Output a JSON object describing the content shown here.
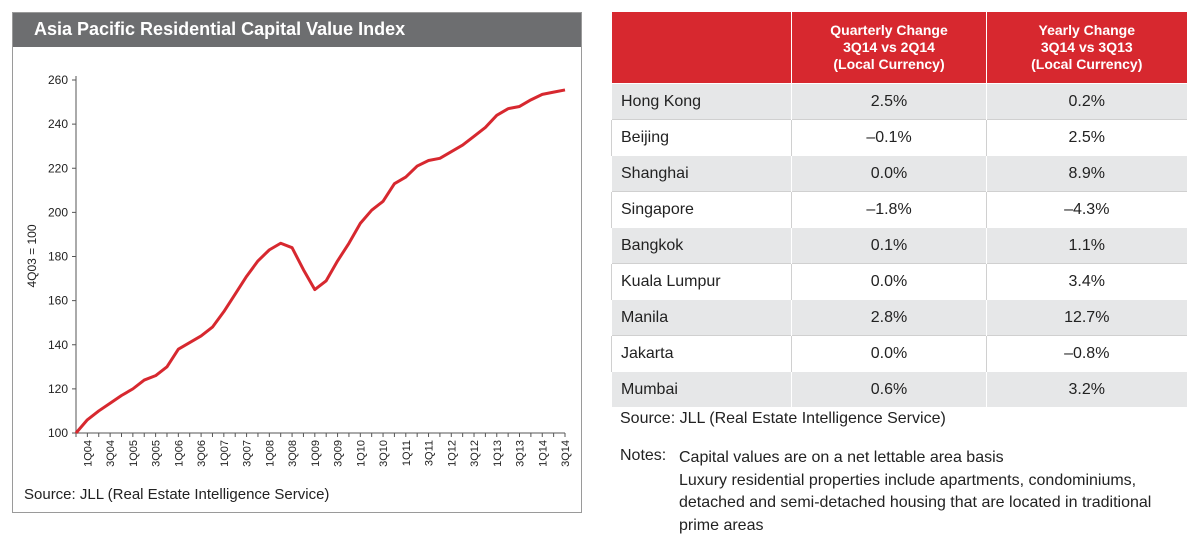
{
  "chart_data": {
    "type": "line",
    "title": "Asia Pacific Residential Capital Value Index",
    "ylabel": "4Q03 = 100",
    "source": "Source: JLL (Real Estate Intelligence Service)",
    "categories": [
      null,
      "1Q04",
      null,
      "3Q04",
      null,
      "1Q05",
      null,
      "3Q05",
      null,
      "1Q06",
      null,
      "3Q06",
      null,
      "1Q07",
      null,
      "3Q07",
      null,
      "1Q08",
      null,
      "3Q08",
      null,
      "1Q09",
      null,
      "3Q09",
      null,
      "1Q10",
      null,
      "3Q10",
      null,
      "1Q11",
      null,
      "3Q11",
      null,
      "1Q12",
      null,
      "3Q12",
      null,
      "1Q13",
      null,
      "3Q13",
      null,
      "1Q14",
      null,
      "3Q14"
    ],
    "values": [
      100,
      106,
      110,
      113.5,
      117,
      120,
      124,
      126,
      130,
      138,
      141,
      144,
      148,
      155,
      163,
      171,
      178,
      183,
      186,
      184,
      174,
      165,
      169,
      178,
      186,
      195,
      201,
      205,
      213,
      216,
      221,
      223.5,
      224.5,
      227.5,
      230.5,
      234.5,
      238.5,
      244,
      247,
      248,
      251,
      253.5,
      254.5,
      255.5
    ],
    "color": "#d7282f",
    "ylim": [
      100,
      260
    ],
    "yticks": [
      100,
      120,
      140,
      160,
      180,
      200,
      220,
      240,
      260
    ]
  },
  "table": {
    "headers": [
      [
        "Quarterly Change",
        "3Q14 vs 2Q14",
        "(Local Currency)"
      ],
      [
        "Yearly Change",
        "3Q14 vs 3Q13",
        "(Local Currency)"
      ]
    ],
    "rows": [
      [
        "Hong Kong",
        "2.5%",
        "0.2%"
      ],
      [
        "Beijing",
        "–0.1%",
        "2.5%"
      ],
      [
        "Shanghai",
        "0.0%",
        "8.9%"
      ],
      [
        "Singapore",
        "–1.8%",
        "–4.3%"
      ],
      [
        "Bangkok",
        "0.1%",
        "1.1%"
      ],
      [
        "Kuala Lumpur",
        "0.0%",
        "3.4%"
      ],
      [
        "Manila",
        "2.8%",
        "12.7%"
      ],
      [
        "Jakarta",
        "0.0%",
        "–0.8%"
      ],
      [
        "Mumbai",
        "0.6%",
        "3.2%"
      ]
    ],
    "source": "Source: JLL (Real Estate Intelligence Service)",
    "notes_label": "Notes:",
    "notes": [
      "Capital values are on a net lettable area basis",
      "Luxury residential properties include apartments, condominiums,",
      "detached and semi-detached housing that are located in traditional",
      "prime areas"
    ]
  }
}
